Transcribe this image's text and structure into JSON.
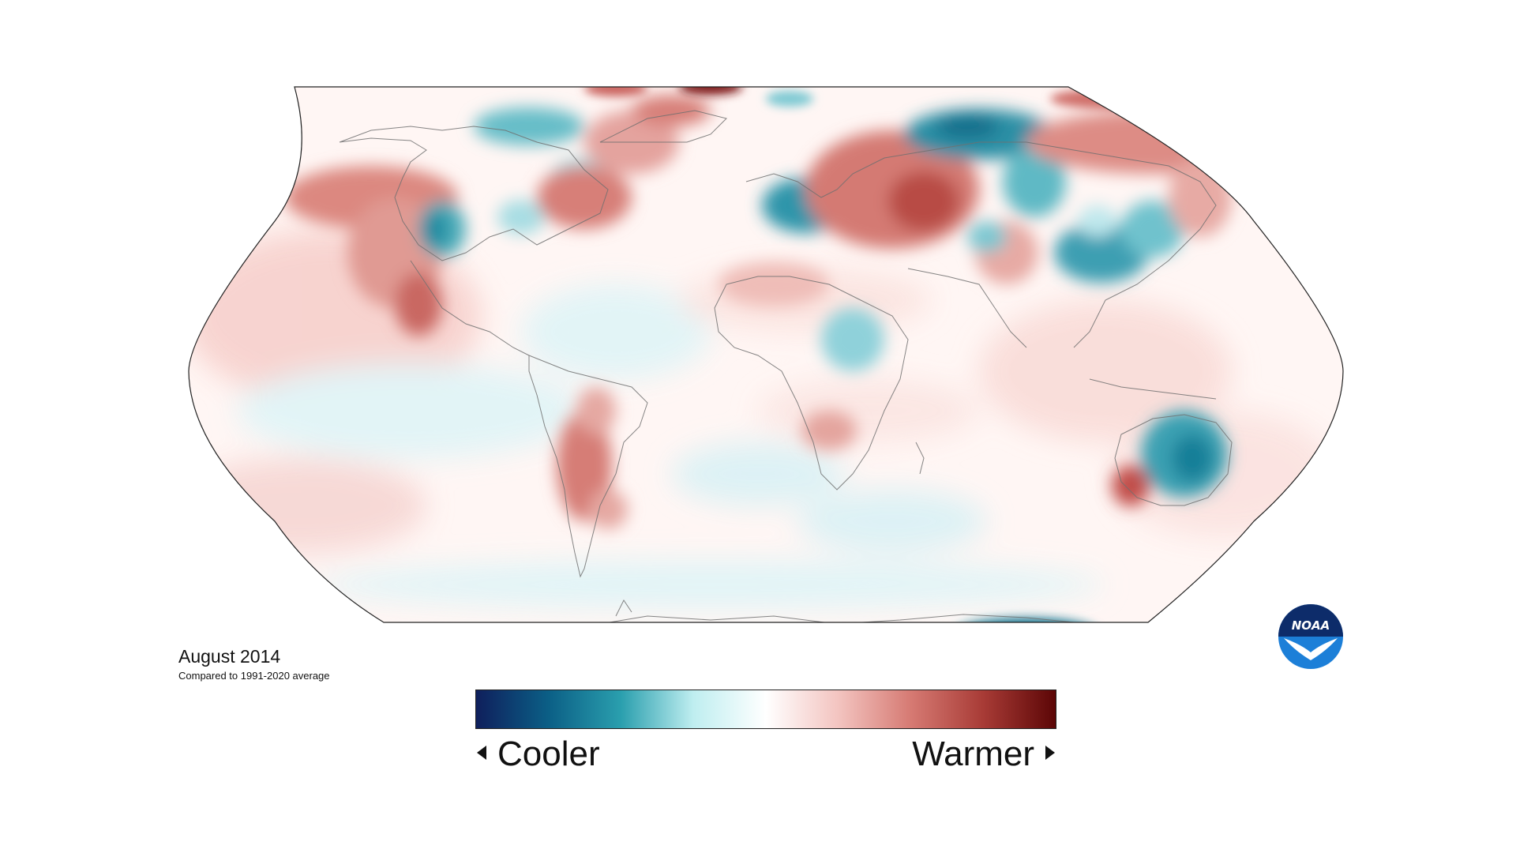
{
  "caption": {
    "title": "August 2014",
    "subtitle": "Compared to 1991-2020 average"
  },
  "legend": {
    "left_label": "Cooler",
    "right_label": "Warmer",
    "colors": [
      "#0f1f5c",
      "#0b5f86",
      "#2a9fae",
      "#bfeef0",
      "#ffffff",
      "#f3c4c0",
      "#d67a73",
      "#a83b36",
      "#5c0606"
    ]
  },
  "logo": {
    "text": "NOAA",
    "icon": "noaa-logo"
  },
  "map": {
    "projection": "Robinson",
    "palette": {
      "ocean_base": "#fff8f6",
      "warm_light": "#f7d3cf",
      "warm_mid": "#de8a83",
      "warm_strong": "#b8453f",
      "warm_extreme": "#5e0808",
      "cool_light": "#d9f4f7",
      "cool_mid": "#63bcc6",
      "cool_strong": "#177d96",
      "cool_extreme": "#0c3a66",
      "coast": "#6d6d6d"
    }
  }
}
